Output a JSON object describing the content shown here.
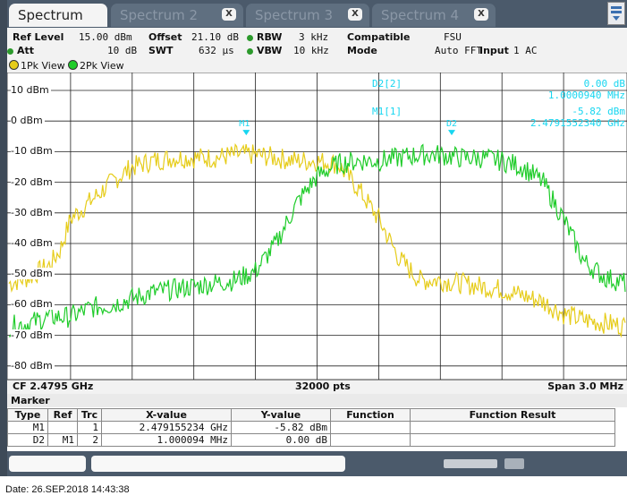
{
  "tabs": [
    {
      "label": "Spectrum",
      "active": true
    },
    {
      "label": "Spectrum 2",
      "active": false
    },
    {
      "label": "Spectrum 3",
      "active": false
    },
    {
      "label": "Spectrum 4",
      "active": false
    }
  ],
  "tab_close_glyph": "X",
  "settings": {
    "ref_level_label": "Ref Level",
    "ref_level_value": "15.00 dBm",
    "offset_label": "Offset",
    "offset_value": "21.10 dB",
    "rbw_label": "RBW",
    "rbw_value": "3 kHz",
    "compatible_label": "Compatible",
    "compatible_value": "FSU",
    "att_label": "Att",
    "att_value": "10 dB",
    "swt_label": "SWT",
    "swt_value": "632 µs",
    "vbw_label": "VBW",
    "vbw_value": "10 kHz",
    "mode_label": "Mode",
    "mode_value": "Auto FFT",
    "input_label": "Input",
    "input_value": "1 AC"
  },
  "trace_views": [
    "1Pk View",
    "2Pk View"
  ],
  "colors": {
    "trace1": "#e6cc1a",
    "trace2": "#1fcc2a",
    "marker": "#17d6f0"
  },
  "y_axis_labels": [
    "10 dBm",
    "0 dBm",
    "-10 dBm",
    "-20 dBm",
    "-30 dBm",
    "-40 dBm",
    "-50 dBm",
    "-60 dBm",
    "-70 dBm",
    "-80 dBm"
  ],
  "marker_readout": {
    "d2_name": "D2[2]",
    "d2_level": "0.00 dB",
    "d2_freq": "1.0000940 MHz",
    "m1_name": "M1[1]",
    "m1_level": "-5.82 dBm",
    "m1_freq": "2.4791552340 GHz",
    "m1_tag": "M1",
    "d2_tag": "D2"
  },
  "plot_footer": {
    "center": "CF 2.4795 GHz",
    "points": "32000 pts",
    "span": "Span 3.0 MHz"
  },
  "marker_table": {
    "title": "Marker",
    "headers": [
      "Type",
      "Ref",
      "Trc",
      "X-value",
      "Y-value",
      "Function",
      "Function Result"
    ],
    "rows": [
      {
        "type": "M1",
        "ref": "",
        "trc": "1",
        "x": "2.479155234 GHz",
        "y": "-5.82 dBm",
        "func": "",
        "result": ""
      },
      {
        "type": "D2",
        "ref": "M1",
        "trc": "2",
        "x": "1.000094 MHz",
        "y": "0.00 dB",
        "func": "",
        "result": ""
      }
    ]
  },
  "date_line": "Date: 26.SEP.2018  14:43:38",
  "chart_data": {
    "type": "line",
    "ylabel_unit": "dBm",
    "ylim": [
      -85,
      15
    ],
    "xlim": [
      2.478,
      2.481
    ],
    "x_unit": "GHz",
    "series": [
      {
        "color": "#e6cc1a",
        "x": [
          2.478,
          2.4781,
          2.4782,
          2.47825,
          2.4783,
          2.4784,
          2.4785,
          2.4786,
          2.4787,
          2.4788,
          2.4789,
          2.479,
          2.4791,
          2.4792,
          2.4793,
          2.4794,
          2.4795,
          2.4796,
          2.4797,
          2.4798,
          2.4799,
          2.48,
          2.4801,
          2.4802,
          2.4803,
          2.4804,
          2.4805,
          2.4806,
          2.4807,
          2.4808,
          2.4809,
          2.481
        ],
        "values": [
          -53,
          -51,
          -47,
          -42,
          -32,
          -26,
          -20,
          -15,
          -13,
          -12,
          -12,
          -12,
          -11,
          -11,
          -12,
          -13,
          -13,
          -14,
          -22,
          -32,
          -45,
          -52,
          -52,
          -53,
          -54,
          -55,
          -57,
          -59,
          -63,
          -65,
          -66,
          -67
        ]
      },
      {
        "color": "#1fcc2a",
        "x": [
          2.478,
          2.4781,
          2.4782,
          2.4783,
          2.4784,
          2.4785,
          2.4786,
          2.4787,
          2.4788,
          2.4789,
          2.479,
          2.4791,
          2.4792,
          2.4793,
          2.4794,
          2.4795,
          2.4796,
          2.4797,
          2.4798,
          2.4799,
          2.48,
          2.4801,
          2.4802,
          2.4803,
          2.4804,
          2.4805,
          2.4806,
          2.4807,
          2.4808,
          2.4809,
          2.481
        ],
        "values": [
          -67,
          -66,
          -64,
          -64,
          -61,
          -60,
          -58,
          -56,
          -55,
          -54,
          -53,
          -52,
          -49,
          -40,
          -27,
          -18,
          -14,
          -13,
          -13,
          -12,
          -11,
          -11,
          -12,
          -12,
          -13,
          -15,
          -20,
          -32,
          -46,
          -51,
          -53
        ]
      }
    ],
    "markers": [
      {
        "name": "M1",
        "x": 2.4791552,
        "y": -5.82
      },
      {
        "name": "D2",
        "x": 2.4801553,
        "y": -5.82
      }
    ]
  }
}
